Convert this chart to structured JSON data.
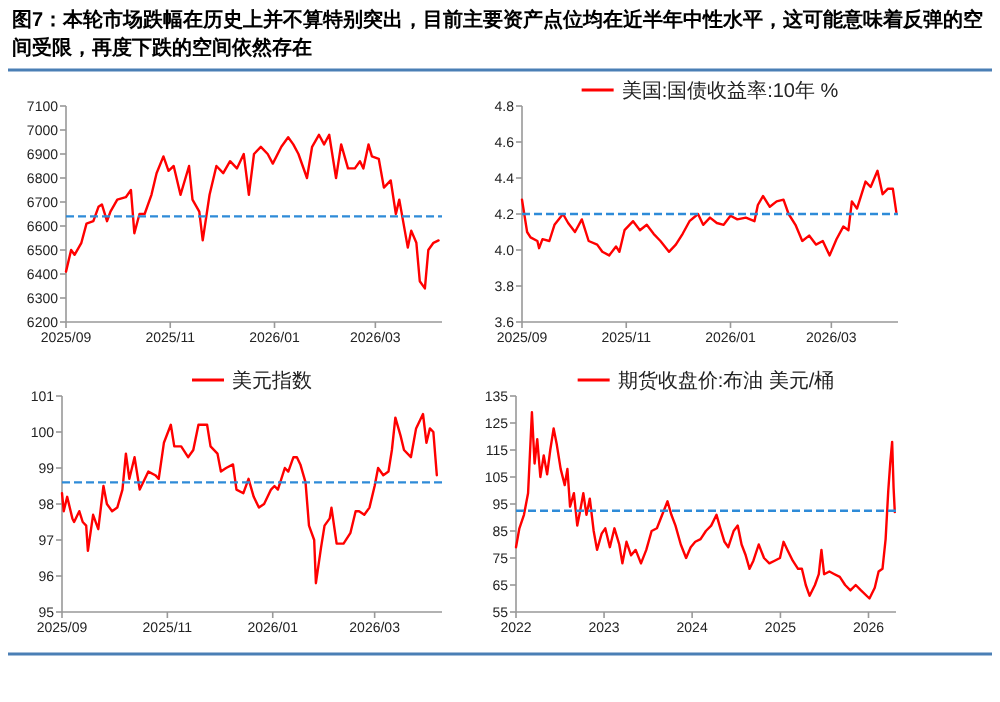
{
  "chart_data": [
    {
      "type": "line",
      "title": "图7：本轮市场跌幅在历史上并不算特别突出，目前主要资产点位均在近半年中性水平，这可能意味着反弹的空间受限，再度下跌的空间依然存在",
      "series": [
        {
          "color": "#ff0000",
          "x": [
            "2025-09-01",
            "2025-09-04",
            "2025-09-06",
            "2025-09-10",
            "2025-09-13",
            "2025-09-17",
            "2025-09-20",
            "2025-09-22",
            "2025-09-25",
            "2025-09-27",
            "2025-10-01",
            "2025-10-06",
            "2025-10-09",
            "2025-10-11",
            "2025-10-14",
            "2025-10-17",
            "2025-10-21",
            "2025-10-24",
            "2025-10-28",
            "2025-10-31",
            "2025-11-03",
            "2025-11-07",
            "2025-11-12",
            "2025-11-14",
            "2025-11-18",
            "2025-11-20",
            "2025-11-24",
            "2025-11-28",
            "2025-12-02",
            "2025-12-06",
            "2025-12-10",
            "2025-12-14",
            "2025-12-17",
            "2025-12-20",
            "2025-12-24",
            "2025-12-28",
            "2025-12-31",
            "2026-01-05",
            "2026-01-09",
            "2026-01-12",
            "2026-01-15",
            "2026-01-20",
            "2026-01-23",
            "2026-01-27",
            "2026-01-30",
            "2026-02-02",
            "2026-02-06",
            "2026-02-09",
            "2026-02-13",
            "2026-02-17",
            "2026-02-20",
            "2026-02-22",
            "2026-02-25",
            "2026-02-27",
            "2026-03-03",
            "2026-03-06",
            "2026-03-10",
            "2026-03-13",
            "2026-03-15",
            "2026-03-20",
            "2026-03-22",
            "2026-03-25",
            "2026-03-27",
            "2026-03-30",
            "2026-04-01",
            "2026-04-04",
            "2026-04-07"
          ],
          "values": [
            6410,
            6500,
            6480,
            6530,
            6610,
            6620,
            6680,
            6690,
            6620,
            6660,
            6710,
            6720,
            6750,
            6570,
            6650,
            6650,
            6730,
            6820,
            6890,
            6830,
            6850,
            6730,
            6850,
            6710,
            6660,
            6540,
            6730,
            6850,
            6820,
            6870,
            6840,
            6900,
            6730,
            6900,
            6930,
            6900,
            6860,
            6930,
            6970,
            6940,
            6900,
            6800,
            6930,
            6980,
            6940,
            6980,
            6800,
            6940,
            6840,
            6840,
            6870,
            6840,
            6940,
            6890,
            6880,
            6760,
            6790,
            6650,
            6710,
            6510,
            6580,
            6530,
            6370,
            6340,
            6500,
            6530,
            6540
          ]
        }
      ],
      "xlim": [
        "2025-09-01",
        "2026-04-09"
      ],
      "xticks": [
        {
          "value": "2025-09-01",
          "label": "2025/09"
        },
        {
          "value": "2025-11-01",
          "label": "2025/11"
        },
        {
          "value": "2026-01-01",
          "label": "2026/01"
        },
        {
          "value": "2026-03-01",
          "label": "2026/03"
        }
      ],
      "ylim": [
        6200,
        7100
      ],
      "yticks": [
        6200,
        6300,
        6400,
        6500,
        6600,
        6700,
        6800,
        6900,
        7000,
        7100
      ],
      "ref_lines": [
        {
          "axis": "y",
          "value": 6640,
          "color": "#2e8bd8",
          "line_style": "dashed"
        }
      ],
      "grid": false
    },
    {
      "type": "line",
      "legend": "top",
      "series": [
        {
          "name": "美国:国债收益率:10年 %",
          "color": "#ff0000",
          "x": [
            "2025-09-01",
            "2025-09-04",
            "2025-09-06",
            "2025-09-10",
            "2025-09-11",
            "2025-09-13",
            "2025-09-17",
            "2025-09-20",
            "2025-09-25",
            "2025-09-28",
            "2025-10-02",
            "2025-10-06",
            "2025-10-10",
            "2025-10-15",
            "2025-10-18",
            "2025-10-22",
            "2025-10-26",
            "2025-10-28",
            "2025-10-31",
            "2025-11-05",
            "2025-11-09",
            "2025-11-13",
            "2025-11-17",
            "2025-11-21",
            "2025-11-26",
            "2025-11-30",
            "2025-12-04",
            "2025-12-08",
            "2025-12-13",
            "2025-12-16",
            "2025-12-20",
            "2025-12-24",
            "2025-12-28",
            "2026-01-01",
            "2026-01-05",
            "2026-01-10",
            "2026-01-15",
            "2026-01-17",
            "2026-01-20",
            "2026-01-24",
            "2026-01-28",
            "2026-02-01",
            "2026-02-04",
            "2026-02-08",
            "2026-02-12",
            "2026-02-16",
            "2026-02-20",
            "2026-02-24",
            "2026-02-28",
            "2026-03-04",
            "2026-03-08",
            "2026-03-11",
            "2026-03-13",
            "2026-03-16",
            "2026-03-18",
            "2026-03-21",
            "2026-03-24",
            "2026-03-28",
            "2026-03-31",
            "2026-04-03",
            "2026-04-06",
            "2026-04-08"
          ],
          "values": [
            4.28,
            4.1,
            4.07,
            4.05,
            4.01,
            4.06,
            4.05,
            4.14,
            4.2,
            4.15,
            4.1,
            4.17,
            4.05,
            4.03,
            3.99,
            3.97,
            4.02,
            3.99,
            4.11,
            4.16,
            4.11,
            4.14,
            4.09,
            4.05,
            3.99,
            4.03,
            4.09,
            4.16,
            4.2,
            4.14,
            4.18,
            4.15,
            4.14,
            4.19,
            4.17,
            4.18,
            4.16,
            4.25,
            4.3,
            4.24,
            4.27,
            4.28,
            4.2,
            4.14,
            4.05,
            4.08,
            4.03,
            4.05,
            3.97,
            4.06,
            4.13,
            4.11,
            4.27,
            4.23,
            4.29,
            4.38,
            4.35,
            4.44,
            4.31,
            4.34,
            4.34,
            4.21
          ]
        }
      ],
      "xlim": [
        "2025-09-01",
        "2026-04-09"
      ],
      "xticks": [
        {
          "value": "2025-09-01",
          "label": "2025/09"
        },
        {
          "value": "2025-11-01",
          "label": "2025/11"
        },
        {
          "value": "2026-01-01",
          "label": "2026/01"
        },
        {
          "value": "2026-03-01",
          "label": "2026/03"
        }
      ],
      "ylim": [
        3.6,
        4.8
      ],
      "yticks": [
        3.6,
        3.8,
        {
          "value": 4.0,
          "label": "4.0"
        },
        4.2,
        4.4,
        4.6,
        4.8
      ],
      "ref_lines": [
        {
          "axis": "y",
          "value": 4.2,
          "color": "#2e8bd8",
          "line_style": "dashed"
        }
      ],
      "grid": false
    },
    {
      "type": "line",
      "legend": "top",
      "series": [
        {
          "name": "美元指数",
          "color": "#ff0000",
          "x": [
            "2025-09-01",
            "2025-09-02",
            "2025-09-04",
            "2025-09-07",
            "2025-09-08",
            "2025-09-11",
            "2025-09-13",
            "2025-09-15",
            "2025-09-16",
            "2025-09-19",
            "2025-09-22",
            "2025-09-25",
            "2025-09-27",
            "2025-09-30",
            "2025-10-03",
            "2025-10-06",
            "2025-10-08",
            "2025-10-10",
            "2025-10-13",
            "2025-10-16",
            "2025-10-19",
            "2025-10-21",
            "2025-10-25",
            "2025-10-27",
            "2025-10-30",
            "2025-11-03",
            "2025-11-05",
            "2025-11-09",
            "2025-11-13",
            "2025-11-16",
            "2025-11-19",
            "2025-11-24",
            "2025-11-26",
            "2025-11-30",
            "2025-12-02",
            "2025-12-05",
            "2025-12-09",
            "2025-12-11",
            "2025-12-15",
            "2025-12-18",
            "2025-12-21",
            "2025-12-24",
            "2025-12-27",
            "2025-12-31",
            "2026-01-02",
            "2026-01-04",
            "2026-01-08",
            "2026-01-10",
            "2026-01-13",
            "2026-01-15",
            "2026-01-17",
            "2026-01-20",
            "2026-01-22",
            "2026-01-25",
            "2026-01-26",
            "2026-01-29",
            "2026-01-31",
            "2026-02-03",
            "2026-02-04",
            "2026-02-07",
            "2026-02-11",
            "2026-02-15",
            "2026-02-18",
            "2026-02-20",
            "2026-02-23",
            "2026-02-26",
            "2026-03-01",
            "2026-03-03",
            "2026-03-06",
            "2026-03-09",
            "2026-03-11",
            "2026-03-13",
            "2026-03-16",
            "2026-03-18",
            "2026-03-22",
            "2026-03-25",
            "2026-03-29",
            "2026-03-31",
            "2026-04-02",
            "2026-04-04",
            "2026-04-06"
          ],
          "values": [
            98.3,
            97.8,
            98.2,
            97.6,
            97.5,
            97.8,
            97.5,
            97.4,
            96.7,
            97.7,
            97.3,
            98.5,
            98.0,
            97.8,
            97.9,
            98.4,
            99.4,
            98.7,
            99.3,
            98.4,
            98.7,
            98.9,
            98.8,
            98.7,
            99.7,
            100.2,
            99.6,
            99.6,
            99.3,
            99.5,
            100.2,
            100.2,
            99.6,
            99.4,
            98.9,
            99.0,
            99.1,
            98.4,
            98.3,
            98.7,
            98.2,
            97.9,
            98.0,
            98.4,
            98.5,
            98.4,
            99.0,
            98.9,
            99.3,
            99.3,
            99.1,
            98.6,
            97.4,
            97.0,
            95.8,
            96.8,
            97.4,
            97.6,
            97.9,
            96.9,
            96.9,
            97.2,
            97.8,
            97.8,
            97.7,
            97.9,
            98.5,
            99.0,
            98.8,
            98.9,
            99.5,
            100.4,
            99.9,
            99.5,
            99.3,
            100.1,
            100.5,
            99.7,
            100.1,
            100.0,
            98.8
          ]
        }
      ],
      "xlim": [
        "2025-09-01",
        "2026-04-09"
      ],
      "xticks": [
        {
          "value": "2025-09-01",
          "label": "2025/09"
        },
        {
          "value": "2025-11-01",
          "label": "2025/11"
        },
        {
          "value": "2026-01-01",
          "label": "2026/01"
        },
        {
          "value": "2026-03-01",
          "label": "2026/03"
        }
      ],
      "ylim": [
        95,
        101
      ],
      "yticks": [
        95,
        96,
        97,
        98,
        99,
        100,
        101
      ],
      "ref_lines": [
        {
          "axis": "y",
          "value": 98.6,
          "color": "#2e8bd8",
          "line_style": "dashed"
        }
      ],
      "grid": false
    },
    {
      "type": "line",
      "legend": "top",
      "series": [
        {
          "name": "期货收盘价:布油 美元/桶",
          "color": "#ff0000",
          "x": [
            "2022-01-01",
            "2022-01-15",
            "2022-02-03",
            "2022-02-20",
            "2022-03-08",
            "2022-03-19",
            "2022-03-30",
            "2022-04-12",
            "2022-04-26",
            "2022-05-10",
            "2022-05-23",
            "2022-06-06",
            "2022-06-19",
            "2022-07-05",
            "2022-07-22",
            "2022-08-02",
            "2022-08-13",
            "2022-08-29",
            "2022-09-12",
            "2022-09-23",
            "2022-10-07",
            "2022-10-20",
            "2022-11-03",
            "2022-11-19",
            "2022-12-03",
            "2022-12-22",
            "2023-01-06",
            "2023-01-25",
            "2023-02-13",
            "2023-03-05",
            "2023-03-18",
            "2023-04-04",
            "2023-04-23",
            "2023-05-12",
            "2023-06-03",
            "2023-06-25",
            "2023-07-17",
            "2023-08-08",
            "2023-08-30",
            "2023-09-21",
            "2023-10-07",
            "2023-10-24",
            "2023-11-15",
            "2023-12-07",
            "2023-12-26",
            "2024-01-14",
            "2024-02-05",
            "2024-02-27",
            "2024-03-20",
            "2024-04-11",
            "2024-04-27",
            "2024-05-14",
            "2024-05-30",
            "2024-06-21",
            "2024-07-08",
            "2024-07-24",
            "2024-08-10",
            "2024-08-26",
            "2024-09-11",
            "2024-10-03",
            "2024-10-25",
            "2024-11-16",
            "2024-12-08",
            "2024-12-30",
            "2025-01-14",
            "2025-01-30",
            "2025-02-21",
            "2025-03-15",
            "2025-03-31",
            "2025-04-16",
            "2025-05-02",
            "2025-05-24",
            "2025-06-09",
            "2025-06-20",
            "2025-07-01",
            "2025-07-23",
            "2025-08-13",
            "2025-09-04",
            "2025-09-26",
            "2025-10-18",
            "2025-11-09",
            "2025-12-01",
            "2026-01-05",
            "2026-01-27",
            "2026-02-12",
            "2026-02-28",
            "2026-03-13",
            "2026-03-24",
            "2026-04-01",
            "2026-04-09",
            "2026-04-15",
            "2026-04-20"
          ],
          "values": [
            79,
            86,
            91,
            99,
            129,
            110,
            119,
            105,
            113,
            106,
            115,
            123,
            117,
            108,
            102,
            108,
            94,
            99,
            87,
            92,
            99,
            91,
            97,
            85,
            78,
            84,
            86,
            79,
            86,
            80,
            73,
            81,
            76,
            78,
            73,
            78,
            85,
            86,
            91,
            96,
            91,
            87,
            80,
            75,
            79,
            81,
            82,
            85,
            87,
            91,
            86,
            81,
            79,
            85,
            87,
            80,
            76,
            71,
            74,
            80,
            75,
            73,
            74,
            75,
            81,
            78,
            74,
            71,
            71,
            65,
            61,
            65,
            69,
            78,
            69,
            70,
            69,
            68,
            65,
            63,
            65,
            63,
            60,
            64,
            70,
            71,
            82,
            100,
            110,
            118,
            101,
            92
          ]
        }
      ],
      "xlim": [
        "2022-01-01",
        "2026-04-25"
      ],
      "xticks": [
        {
          "value": "2022-01-01",
          "label": "2022"
        },
        {
          "value": "2023-01-01",
          "label": "2023"
        },
        {
          "value": "2024-01-01",
          "label": "2024"
        },
        {
          "value": "2025-01-01",
          "label": "2025"
        },
        {
          "value": "2026-01-01",
          "label": "2026"
        }
      ],
      "ylim": [
        55,
        135
      ],
      "yticks": [
        55,
        65,
        75,
        85,
        95,
        105,
        115,
        125,
        135
      ],
      "ref_lines": [
        {
          "axis": "y",
          "value": 92.5,
          "color": "#2e8bd8",
          "line_style": "dashed"
        }
      ],
      "grid": false
    }
  ]
}
